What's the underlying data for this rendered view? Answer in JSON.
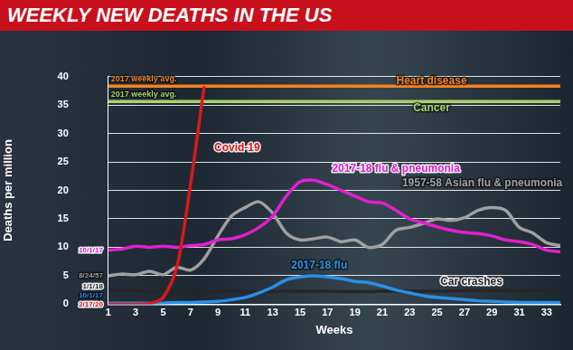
{
  "chart_data": {
    "type": "line",
    "title": "WEEKLY NEW DEATHS IN THE US",
    "x_label": "Weeks",
    "y_label": "Deaths per million",
    "x": [
      1,
      2,
      3,
      4,
      5,
      6,
      7,
      8,
      9,
      10,
      11,
      12,
      13,
      14,
      15,
      16,
      17,
      18,
      19,
      20,
      21,
      22,
      23,
      24,
      25,
      26,
      27,
      28,
      29,
      30,
      31,
      32,
      33,
      34
    ],
    "xlim": [
      1,
      34
    ],
    "xticks": [
      1,
      3,
      5,
      7,
      9,
      11,
      13,
      15,
      17,
      19,
      21,
      23,
      25,
      27,
      29,
      31,
      33
    ],
    "ylim": [
      0,
      40
    ],
    "yticks": [
      0,
      5,
      10,
      15,
      20,
      25,
      30,
      35,
      40
    ],
    "grid": "y",
    "series": [
      {
        "name": "Covid-19",
        "color": "#d7191c",
        "start_label": "2/17/20",
        "label_position": {
          "x": 10.4,
          "y": 27.5
        },
        "values": [
          0,
          0,
          0,
          0.1,
          1.2,
          6.5,
          21,
          38.3,
          null,
          null,
          null,
          null,
          null,
          null,
          null,
          null,
          null,
          null,
          null,
          null,
          null,
          null,
          null,
          null,
          null,
          null,
          null,
          null,
          null,
          null,
          null,
          null,
          null,
          null
        ]
      },
      {
        "name": "2017-18 flu & pneumonia",
        "color": "#e020d0",
        "start_label": "10/1/17",
        "label_position": {
          "x": 22,
          "y": 23.8
        },
        "values": [
          9.5,
          9.7,
          10.2,
          10,
          10.2,
          10,
          10.3,
          10.5,
          11.3,
          11.5,
          12.2,
          13.5,
          15.5,
          19,
          21.5,
          21.8,
          21,
          20,
          19,
          18,
          17.8,
          16.5,
          15,
          14.3,
          13.6,
          13,
          12.6,
          12.4,
          12,
          11.3,
          11,
          10.5,
          9.5,
          9.2
        ]
      },
      {
        "name": "1957-58 Asian flu & pneumonia",
        "color": "#a0a0a0",
        "start_label": "8/24/57",
        "label_position": {
          "x": 28.3,
          "y": 21.3
        },
        "values": [
          5,
          5.3,
          5.2,
          5.8,
          5.2,
          6.5,
          6,
          8,
          12,
          15.5,
          17,
          18,
          16,
          12.5,
          11.3,
          11.5,
          11.8,
          11,
          11.3,
          10,
          10.5,
          13,
          13.5,
          14.2,
          15,
          14.7,
          15.2,
          16.5,
          17,
          16.5,
          13.5,
          12.5,
          10.8,
          10.3
        ]
      },
      {
        "name": "2017-18 flu",
        "color": "#2b8fe6",
        "start_label": "10/1/17",
        "label_position": {
          "x": 16.4,
          "y": 6.8
        },
        "values": [
          0.2,
          0.2,
          0.2,
          0.2,
          0.2,
          0.3,
          0.3,
          0.4,
          0.5,
          0.8,
          1.2,
          2,
          3,
          4.3,
          4.8,
          5,
          4.8,
          4.5,
          4,
          3.8,
          3.2,
          2.5,
          2,
          1.5,
          1.2,
          1,
          0.8,
          0.6,
          0.5,
          0.4,
          0.3,
          0.3,
          0.3,
          0.3
        ]
      },
      {
        "name": "Car crashes",
        "color": "#262626",
        "start_label": "1/1/18",
        "label_position": {
          "x": 27.5,
          "y": 3.9
        },
        "values": [
          2.5,
          2.5,
          2.4,
          2.3,
          2.3,
          2.3,
          2.2,
          2.2,
          2.3,
          2.3,
          2.2,
          2.2,
          2.2,
          2.3,
          2.3,
          2.3,
          2.3,
          2.2,
          2.2,
          2.2,
          2.3,
          2.3,
          2.3,
          2.3,
          2.3,
          2.3,
          2.4,
          2.4,
          2.4,
          2.4,
          2.4,
          2.4,
          2.4,
          2.4
        ]
      },
      {
        "name": "Heart disease",
        "color": "#f5821f",
        "note": "2017 weekly avg.",
        "label_position": {
          "x": 24.6,
          "y": 39.2
        },
        "values": [
          38.3,
          38.3,
          38.3,
          38.3,
          38.3,
          38.3,
          38.3,
          38.3,
          38.3,
          38.3,
          38.3,
          38.3,
          38.3,
          38.3,
          38.3,
          38.3,
          38.3,
          38.3,
          38.3,
          38.3,
          38.3,
          38.3,
          38.3,
          38.3,
          38.3,
          38.3,
          38.3,
          38.3,
          38.3,
          38.3,
          38.3,
          38.3,
          38.3,
          38.3
        ]
      },
      {
        "name": "Cancer",
        "color": "#a6d36a",
        "note": "2017 weekly avg.",
        "label_position": {
          "x": 24.6,
          "y": 34.5
        },
        "values": [
          35.6,
          35.6,
          35.6,
          35.6,
          35.6,
          35.6,
          35.6,
          35.6,
          35.6,
          35.6,
          35.6,
          35.6,
          35.6,
          35.6,
          35.6,
          35.6,
          35.6,
          35.6,
          35.6,
          35.6,
          35.6,
          35.6,
          35.6,
          35.6,
          35.6,
          35.6,
          35.6,
          35.6,
          35.6,
          35.6,
          35.6,
          35.6,
          35.6,
          35.6
        ]
      }
    ]
  }
}
